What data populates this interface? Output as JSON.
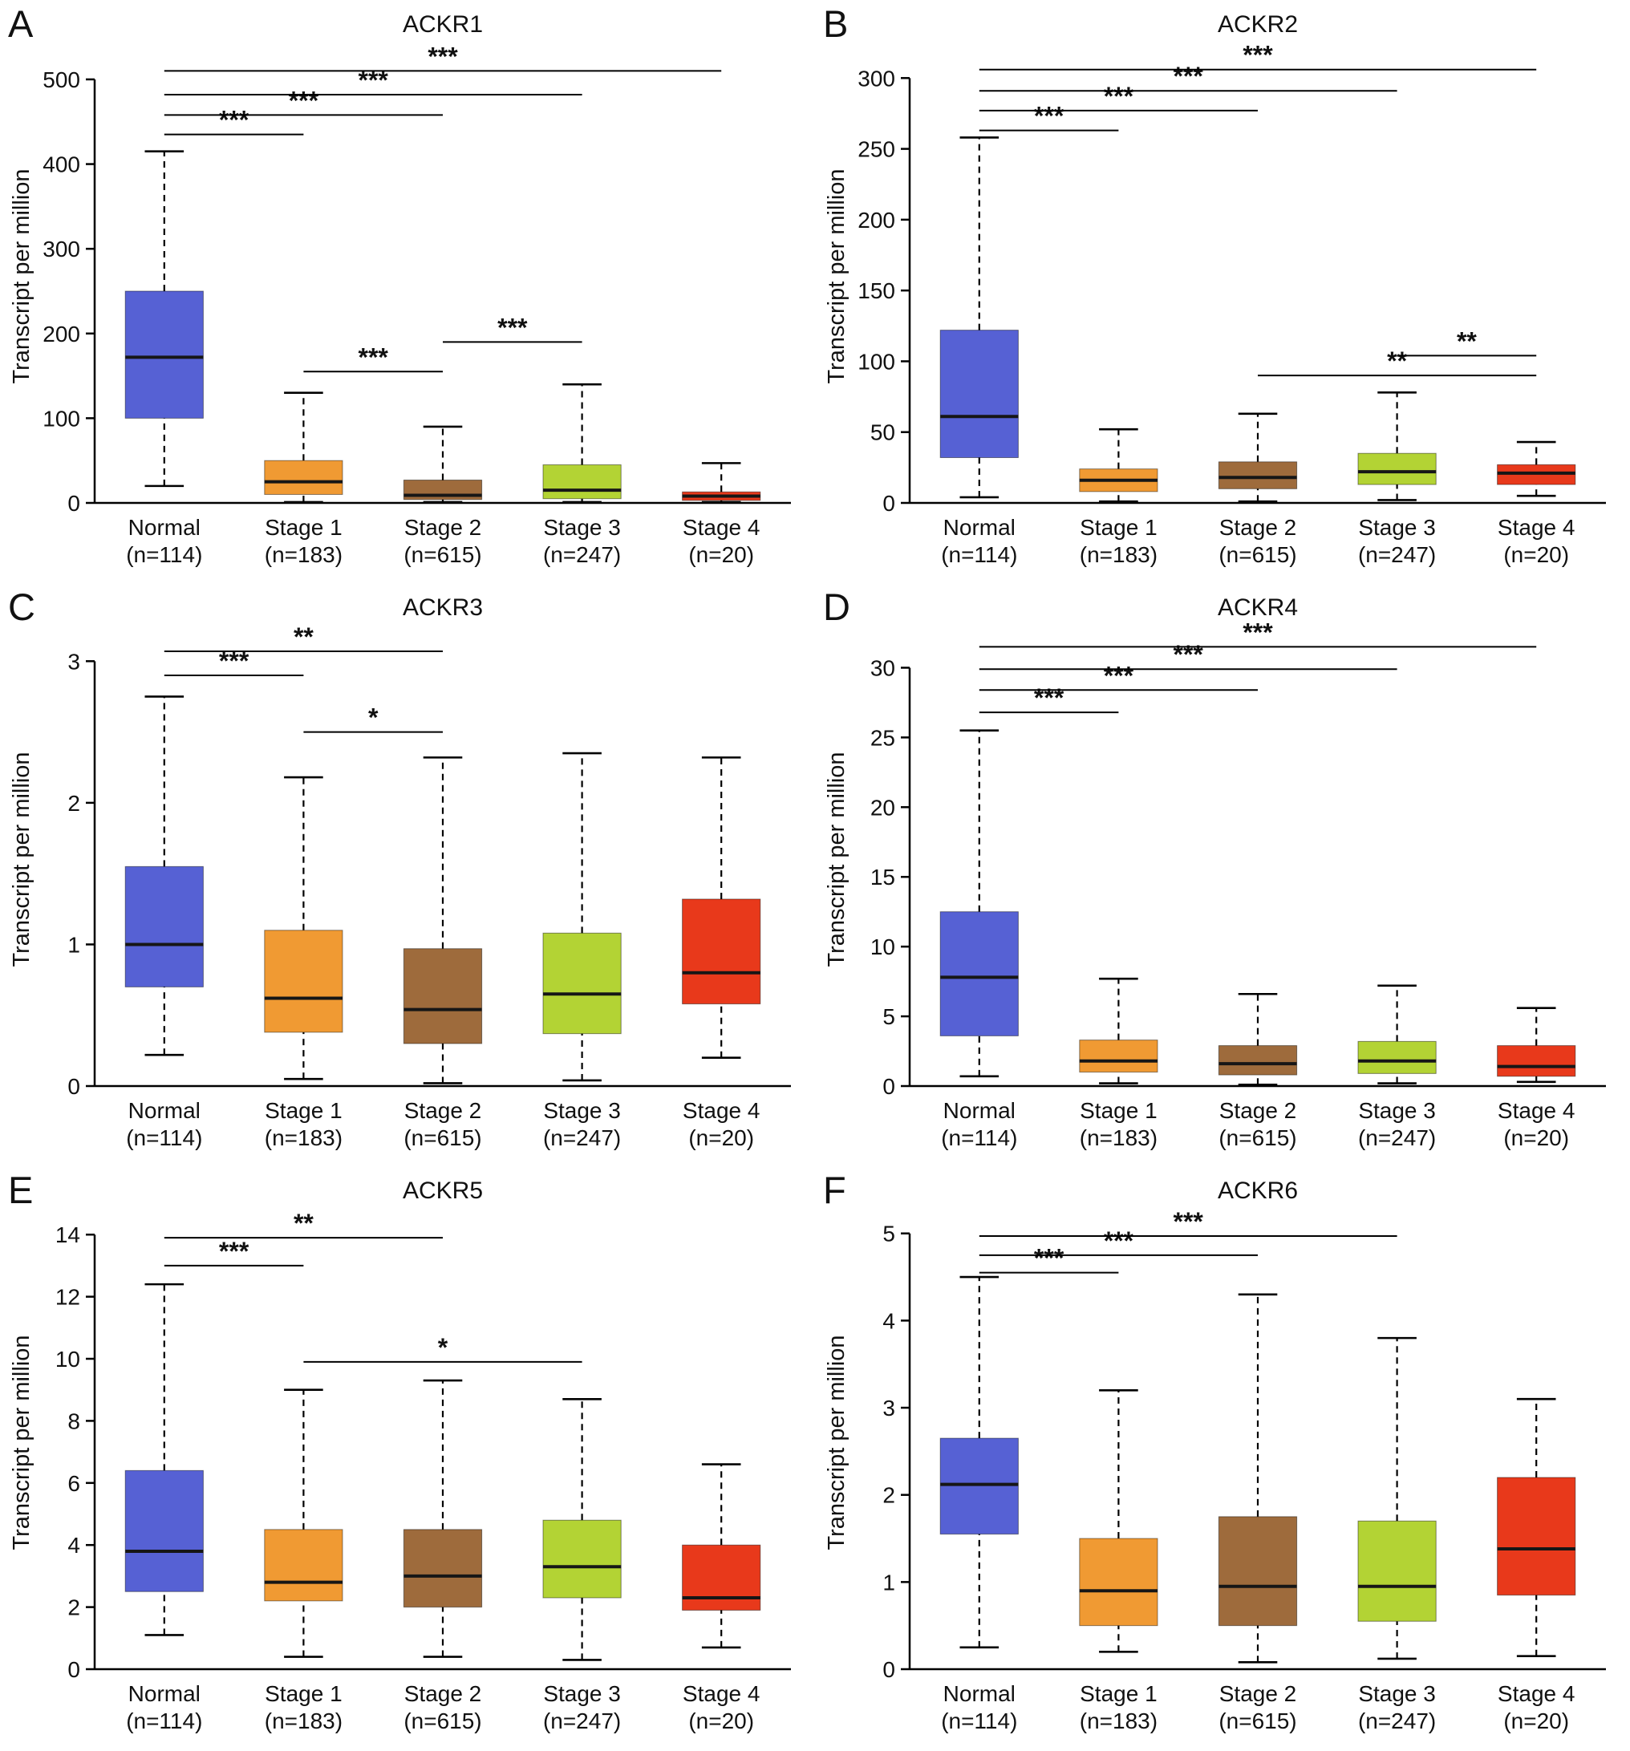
{
  "figure": {
    "background": "#ffffff",
    "categories": [
      {
        "label": "Normal",
        "n": "(n=114)"
      },
      {
        "label": "Stage 1",
        "n": "(n=183)"
      },
      {
        "label": "Stage 2",
        "n": "(n=615)"
      },
      {
        "label": "Stage 3",
        "n": "(n=247)"
      },
      {
        "label": "Stage 4",
        "n": "(n=20)"
      }
    ],
    "colors": {
      "normal": "#5661d4",
      "stage1": "#f09a33",
      "stage2": "#9e6b3c",
      "stage3": "#b3d334",
      "stage4": "#e8391b",
      "axis": "#000000",
      "median": "#161616"
    }
  },
  "chart_data": [
    {
      "type": "box",
      "panel": "A",
      "title": "ACKR1",
      "ylabel": "Transcript per million",
      "ylim": [
        0,
        535
      ],
      "yticks": [
        0,
        100,
        200,
        300,
        400,
        500
      ],
      "series": [
        {
          "name": "Normal",
          "color_key": "normal",
          "low": 20,
          "q1": 100,
          "median": 172,
          "q3": 250,
          "high": 415
        },
        {
          "name": "Stage 1",
          "color_key": "stage1",
          "low": 1,
          "q1": 10,
          "median": 25,
          "q3": 50,
          "high": 130
        },
        {
          "name": "Stage 2",
          "color_key": "stage2",
          "low": 1,
          "q1": 4,
          "median": 9,
          "q3": 27,
          "high": 90
        },
        {
          "name": "Stage 3",
          "color_key": "stage3",
          "low": 1,
          "q1": 5,
          "median": 15,
          "q3": 45,
          "high": 140
        },
        {
          "name": "Stage 4",
          "color_key": "stage4",
          "low": 1,
          "q1": 3,
          "median": 8,
          "q3": 13,
          "high": 47
        }
      ],
      "brackets": [
        {
          "from": 0,
          "to": 1,
          "y": 435,
          "label": "***"
        },
        {
          "from": 0,
          "to": 2,
          "y": 458,
          "label": "***"
        },
        {
          "from": 0,
          "to": 3,
          "y": 482,
          "label": "***"
        },
        {
          "from": 0,
          "to": 4,
          "y": 510,
          "label": "***"
        },
        {
          "from": 1,
          "to": 2,
          "y": 155,
          "label": "***"
        },
        {
          "from": 2,
          "to": 3,
          "y": 190,
          "label": "***"
        }
      ]
    },
    {
      "type": "box",
      "panel": "B",
      "title": "ACKR2",
      "ylabel": "Transcript per million",
      "ylim": [
        0,
        320
      ],
      "yticks": [
        0,
        50,
        100,
        150,
        200,
        250,
        300
      ],
      "series": [
        {
          "name": "Normal",
          "color_key": "normal",
          "low": 4,
          "q1": 32,
          "median": 61,
          "q3": 122,
          "high": 258
        },
        {
          "name": "Stage 1",
          "color_key": "stage1",
          "low": 1,
          "q1": 8,
          "median": 16,
          "q3": 24,
          "high": 52
        },
        {
          "name": "Stage 2",
          "color_key": "stage2",
          "low": 1,
          "q1": 10,
          "median": 18,
          "q3": 29,
          "high": 63
        },
        {
          "name": "Stage 3",
          "color_key": "stage3",
          "low": 2,
          "q1": 13,
          "median": 22,
          "q3": 35,
          "high": 78
        },
        {
          "name": "Stage 4",
          "color_key": "stage4",
          "low": 5,
          "q1": 13,
          "median": 21,
          "q3": 27,
          "high": 43
        }
      ],
      "brackets": [
        {
          "from": 0,
          "to": 1,
          "y": 263,
          "label": "***"
        },
        {
          "from": 0,
          "to": 2,
          "y": 277,
          "label": "***"
        },
        {
          "from": 0,
          "to": 3,
          "y": 291,
          "label": "***"
        },
        {
          "from": 0,
          "to": 4,
          "y": 306,
          "label": "***"
        },
        {
          "from": 2,
          "to": 4,
          "y": 90,
          "label": "**"
        },
        {
          "from": 3,
          "to": 4,
          "y": 104,
          "label": "**"
        }
      ]
    },
    {
      "type": "box",
      "panel": "C",
      "title": "ACKR3",
      "ylabel": "Transcript per million",
      "ylim": [
        0,
        3.2
      ],
      "yticks": [
        0,
        1,
        2,
        3
      ],
      "series": [
        {
          "name": "Normal",
          "color_key": "normal",
          "low": 0.22,
          "q1": 0.7,
          "median": 1.0,
          "q3": 1.55,
          "high": 2.75
        },
        {
          "name": "Stage 1",
          "color_key": "stage1",
          "low": 0.05,
          "q1": 0.38,
          "median": 0.62,
          "q3": 1.1,
          "high": 2.18
        },
        {
          "name": "Stage 2",
          "color_key": "stage2",
          "low": 0.02,
          "q1": 0.3,
          "median": 0.54,
          "q3": 0.97,
          "high": 2.32
        },
        {
          "name": "Stage 3",
          "color_key": "stage3",
          "low": 0.04,
          "q1": 0.37,
          "median": 0.65,
          "q3": 1.08,
          "high": 2.35
        },
        {
          "name": "Stage 4",
          "color_key": "stage4",
          "low": 0.2,
          "q1": 0.58,
          "median": 0.8,
          "q3": 1.32,
          "high": 2.32
        }
      ],
      "brackets": [
        {
          "from": 0,
          "to": 1,
          "y": 2.9,
          "label": "***"
        },
        {
          "from": 0,
          "to": 2,
          "y": 3.07,
          "label": "**"
        },
        {
          "from": 1,
          "to": 2,
          "y": 2.5,
          "label": "*"
        }
      ]
    },
    {
      "type": "box",
      "panel": "D",
      "title": "ACKR4",
      "ylabel": "Transcript per million",
      "ylim": [
        0,
        32.5
      ],
      "yticks": [
        0,
        5,
        10,
        15,
        20,
        25,
        30
      ],
      "series": [
        {
          "name": "Normal",
          "color_key": "normal",
          "low": 0.7,
          "q1": 3.6,
          "median": 7.8,
          "q3": 12.5,
          "high": 25.5
        },
        {
          "name": "Stage 1",
          "color_key": "stage1",
          "low": 0.2,
          "q1": 1.0,
          "median": 1.8,
          "q3": 3.3,
          "high": 7.7
        },
        {
          "name": "Stage 2",
          "color_key": "stage2",
          "low": 0.1,
          "q1": 0.8,
          "median": 1.6,
          "q3": 2.9,
          "high": 6.6
        },
        {
          "name": "Stage 3",
          "color_key": "stage3",
          "low": 0.2,
          "q1": 0.9,
          "median": 1.8,
          "q3": 3.2,
          "high": 7.2
        },
        {
          "name": "Stage 4",
          "color_key": "stage4",
          "low": 0.3,
          "q1": 0.7,
          "median": 1.4,
          "q3": 2.9,
          "high": 5.6
        }
      ],
      "brackets": [
        {
          "from": 0,
          "to": 1,
          "y": 26.8,
          "label": "***"
        },
        {
          "from": 0,
          "to": 2,
          "y": 28.4,
          "label": "***"
        },
        {
          "from": 0,
          "to": 3,
          "y": 29.9,
          "label": "***"
        },
        {
          "from": 0,
          "to": 4,
          "y": 31.5,
          "label": "***"
        }
      ]
    },
    {
      "type": "box",
      "panel": "E",
      "title": "ACKR5",
      "ylabel": "Transcript per million",
      "ylim": [
        0,
        14.6
      ],
      "yticks": [
        0,
        2,
        4,
        6,
        8,
        10,
        12,
        14
      ],
      "series": [
        {
          "name": "Normal",
          "color_key": "normal",
          "low": 1.1,
          "q1": 2.5,
          "median": 3.8,
          "q3": 6.4,
          "high": 12.4
        },
        {
          "name": "Stage 1",
          "color_key": "stage1",
          "low": 0.4,
          "q1": 2.2,
          "median": 2.8,
          "q3": 4.5,
          "high": 9.0
        },
        {
          "name": "Stage 2",
          "color_key": "stage2",
          "low": 0.4,
          "q1": 2.0,
          "median": 3.0,
          "q3": 4.5,
          "high": 9.3
        },
        {
          "name": "Stage 3",
          "color_key": "stage3",
          "low": 0.3,
          "q1": 2.3,
          "median": 3.3,
          "q3": 4.8,
          "high": 8.7
        },
        {
          "name": "Stage 4",
          "color_key": "stage4",
          "low": 0.7,
          "q1": 1.9,
          "median": 2.3,
          "q3": 4.0,
          "high": 6.6
        }
      ],
      "brackets": [
        {
          "from": 0,
          "to": 1,
          "y": 13.0,
          "label": "***"
        },
        {
          "from": 0,
          "to": 2,
          "y": 13.9,
          "label": "**"
        },
        {
          "from": 1,
          "to": 3,
          "y": 9.9,
          "label": "*"
        }
      ]
    },
    {
      "type": "box",
      "panel": "F",
      "title": "ACKR6",
      "ylabel": "Transcript per million",
      "ylim": [
        0,
        5.2
      ],
      "yticks": [
        0,
        1,
        2,
        3,
        4,
        5
      ],
      "series": [
        {
          "name": "Normal",
          "color_key": "normal",
          "low": 0.25,
          "q1": 1.55,
          "median": 2.12,
          "q3": 2.65,
          "high": 4.5
        },
        {
          "name": "Stage 1",
          "color_key": "stage1",
          "low": 0.2,
          "q1": 0.5,
          "median": 0.9,
          "q3": 1.5,
          "high": 3.2
        },
        {
          "name": "Stage 2",
          "color_key": "stage2",
          "low": 0.08,
          "q1": 0.5,
          "median": 0.95,
          "q3": 1.75,
          "high": 4.3
        },
        {
          "name": "Stage 3",
          "color_key": "stage3",
          "low": 0.12,
          "q1": 0.55,
          "median": 0.95,
          "q3": 1.7,
          "high": 3.8
        },
        {
          "name": "Stage 4",
          "color_key": "stage4",
          "low": 0.15,
          "q1": 0.85,
          "median": 1.38,
          "q3": 2.2,
          "high": 3.1
        }
      ],
      "brackets": [
        {
          "from": 0,
          "to": 1,
          "y": 4.55,
          "label": "***"
        },
        {
          "from": 0,
          "to": 2,
          "y": 4.75,
          "label": "***"
        },
        {
          "from": 0,
          "to": 3,
          "y": 4.97,
          "label": "***"
        }
      ]
    }
  ]
}
